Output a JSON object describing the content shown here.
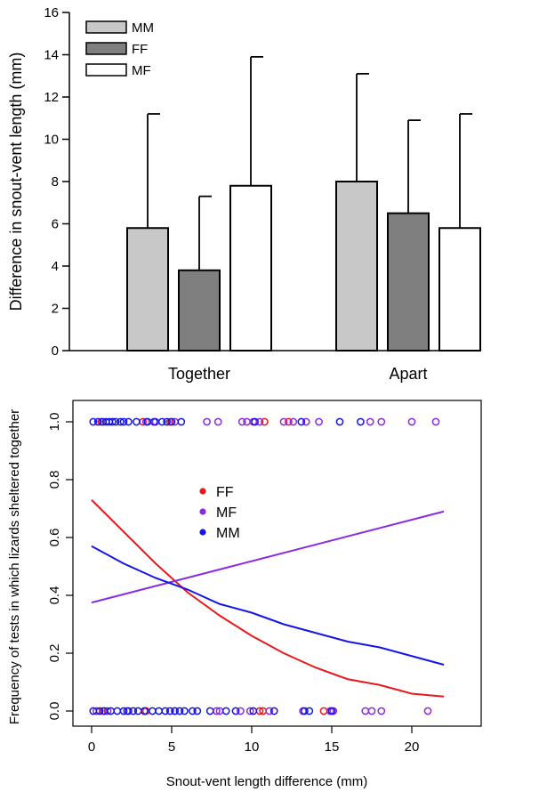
{
  "chart_data": [
    {
      "type": "bar",
      "ylabel": "Difference in snout-vent length (mm)",
      "ylim": [
        0,
        16
      ],
      "yticks": [
        0,
        2,
        4,
        6,
        8,
        10,
        12,
        14,
        16
      ],
      "categories": [
        "Together",
        "Apart"
      ],
      "legend_position": "top-left",
      "series": [
        {
          "name": "MM",
          "color": "#c8c8c8",
          "values": [
            5.8,
            8.0
          ],
          "error_upper": [
            11.2,
            13.1
          ]
        },
        {
          "name": "FF",
          "color": "#7f7f7f",
          "values": [
            3.8,
            6.5
          ],
          "error_upper": [
            7.3,
            10.9
          ]
        },
        {
          "name": "MF",
          "color": "#ffffff",
          "values": [
            7.8,
            5.8
          ],
          "error_upper": [
            13.9,
            11.2
          ]
        }
      ]
    },
    {
      "type": "scatter",
      "xlabel": "Snout-vent length difference (mm)",
      "ylabel": "Frequency of tests in which lizards sheltered together",
      "xlim": [
        0,
        22
      ],
      "ylim": [
        0,
        1
      ],
      "xticks": [
        0,
        5,
        10,
        15,
        20
      ],
      "yticks": [
        "0.0",
        "0.2",
        "0.4",
        "0.6",
        "0.8",
        "1.0"
      ],
      "legend_position": "center-left",
      "series": [
        {
          "name": "FF",
          "color": "#e8181c",
          "points_y1": [
            0.6,
            3.2,
            4.9,
            10.8,
            12.3
          ],
          "points_y0": [
            0.7,
            3.4,
            10.5,
            10.7,
            14.5
          ],
          "fit": {
            "x": [
              0,
              2,
              4,
              6,
              8,
              10,
              12,
              14,
              16,
              18,
              20,
              22
            ],
            "y": [
              0.73,
              0.62,
              0.51,
              0.41,
              0.33,
              0.26,
              0.2,
              0.15,
              0.11,
              0.09,
              0.06,
              0.05
            ]
          }
        },
        {
          "name": "MF",
          "color": "#8a2be2",
          "points_y1": [
            3.4,
            4.0,
            5.2,
            7.2,
            7.9,
            9.4,
            9.7,
            10.1,
            10.5,
            12.0,
            12.6,
            13.4,
            14.2,
            17.4,
            18.1,
            20.0,
            21.5
          ],
          "points_y0": [
            0.3,
            1.0,
            2.2,
            3.3,
            5.2,
            7.8,
            8.0,
            9.3,
            9.9,
            11.1,
            13.2,
            14.9,
            15.1,
            17.1,
            17.5,
            18.1,
            21.0
          ],
          "fit": {
            "x": [
              0,
              22
            ],
            "y": [
              0.375,
              0.69
            ]
          }
        },
        {
          "name": "MM",
          "color": "#1515e6",
          "points_y1": [
            0.1,
            0.4,
            0.7,
            0.9,
            1.1,
            1.3,
            1.5,
            1.8,
            2.0,
            2.3,
            2.8,
            3.5,
            3.9,
            4.4,
            4.7,
            5.0,
            5.6,
            10.2,
            13.1,
            15.5,
            16.8
          ],
          "points_y0": [
            0.1,
            0.5,
            0.8,
            1.2,
            1.6,
            2.0,
            2.3,
            2.6,
            2.9,
            3.3,
            3.8,
            4.2,
            4.6,
            4.9,
            5.2,
            5.5,
            5.8,
            6.3,
            6.6,
            7.4,
            8.4,
            9.0,
            10.1,
            11.4,
            13.3,
            13.6,
            15.0
          ],
          "fit": {
            "x": [
              0,
              2,
              4,
              6,
              8,
              10,
              12,
              14,
              16,
              18,
              20,
              22
            ],
            "y": [
              0.57,
              0.51,
              0.46,
              0.42,
              0.37,
              0.34,
              0.3,
              0.27,
              0.24,
              0.22,
              0.19,
              0.16
            ]
          }
        }
      ]
    }
  ]
}
